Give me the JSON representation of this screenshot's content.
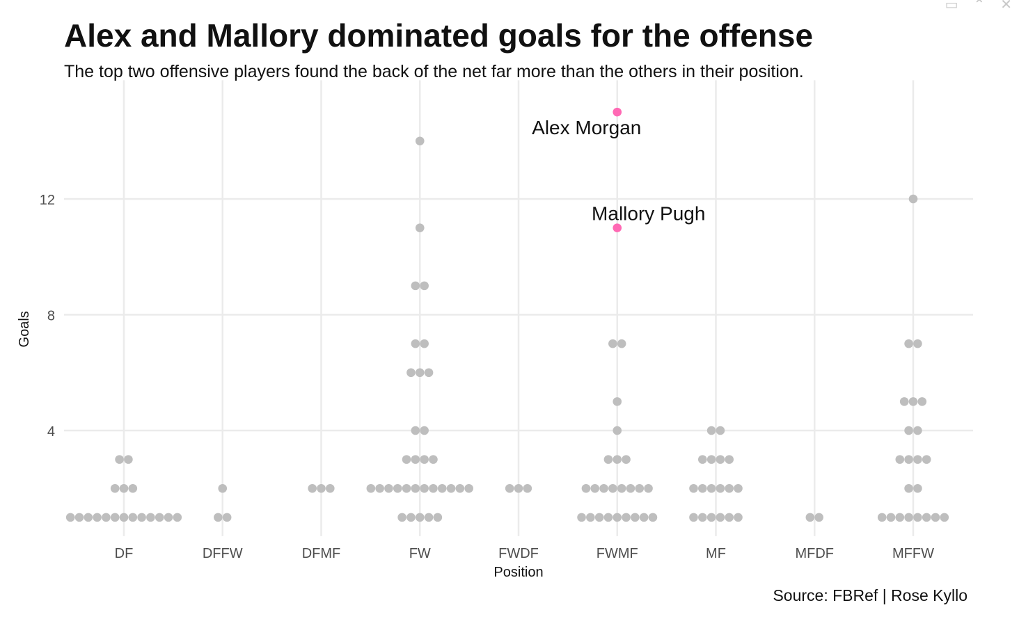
{
  "window_controls": [
    {
      "icon": "document-icon",
      "glyph": "▭"
    },
    {
      "icon": "collapse-icon",
      "glyph": "⌃"
    },
    {
      "icon": "close-icon",
      "glyph": "✕"
    }
  ],
  "chart_data": {
    "type": "scatter",
    "title": "Alex and Mallory dominated goals for the offense",
    "subtitle": "The top two offensive players found the back of the net far more than the others in their position.",
    "xlabel": "Position",
    "ylabel": "Goals",
    "caption": "Source: FBRef | Rose Kyllo",
    "categories": [
      "DF",
      "DFFW",
      "DFMF",
      "FW",
      "FWDF",
      "FWMF",
      "MF",
      "MFDF",
      "MFFW"
    ],
    "y_ticks": [
      4,
      8,
      12
    ],
    "ylim": [
      0.35,
      16.1
    ],
    "grid": true,
    "colors": {
      "default": "#bebebe",
      "highlight": "#ff69b4"
    },
    "points": [
      {
        "position": "DF",
        "goals": [
          1,
          1,
          1,
          1,
          1,
          1,
          1,
          1,
          1,
          1,
          1,
          1,
          1,
          2,
          2,
          2,
          3,
          3
        ]
      },
      {
        "position": "DFFW",
        "goals": [
          1,
          1,
          2
        ]
      },
      {
        "position": "DFMF",
        "goals": [
          2,
          2,
          2
        ]
      },
      {
        "position": "FW",
        "goals": [
          1,
          1,
          1,
          1,
          1,
          2,
          2,
          2,
          2,
          2,
          2,
          2,
          2,
          2,
          2,
          2,
          2,
          3,
          3,
          3,
          3,
          4,
          4,
          6,
          6,
          6,
          7,
          7,
          9,
          9,
          11,
          14
        ]
      },
      {
        "position": "FWDF",
        "goals": [
          2,
          2,
          2
        ]
      },
      {
        "position": "FWMF",
        "goals": [
          1,
          1,
          1,
          1,
          1,
          1,
          1,
          1,
          1,
          2,
          2,
          2,
          2,
          2,
          2,
          2,
          2,
          3,
          3,
          3,
          4,
          5,
          7,
          7
        ]
      },
      {
        "position": "MF",
        "goals": [
          1,
          1,
          1,
          1,
          1,
          1,
          2,
          2,
          2,
          2,
          2,
          2,
          3,
          3,
          3,
          3,
          4,
          4
        ]
      },
      {
        "position": "MFDF",
        "goals": [
          1,
          1
        ]
      },
      {
        "position": "MFFW",
        "goals": [
          1,
          1,
          1,
          1,
          1,
          1,
          1,
          1,
          2,
          2,
          3,
          3,
          3,
          3,
          4,
          4,
          5,
          5,
          5,
          7,
          7,
          12
        ]
      }
    ],
    "highlighted": [
      {
        "name": "Alex Morgan",
        "position": "FWMF",
        "goals": 15
      },
      {
        "name": "Mallory Pugh",
        "position": "FWMF",
        "goals": 11
      }
    ]
  }
}
